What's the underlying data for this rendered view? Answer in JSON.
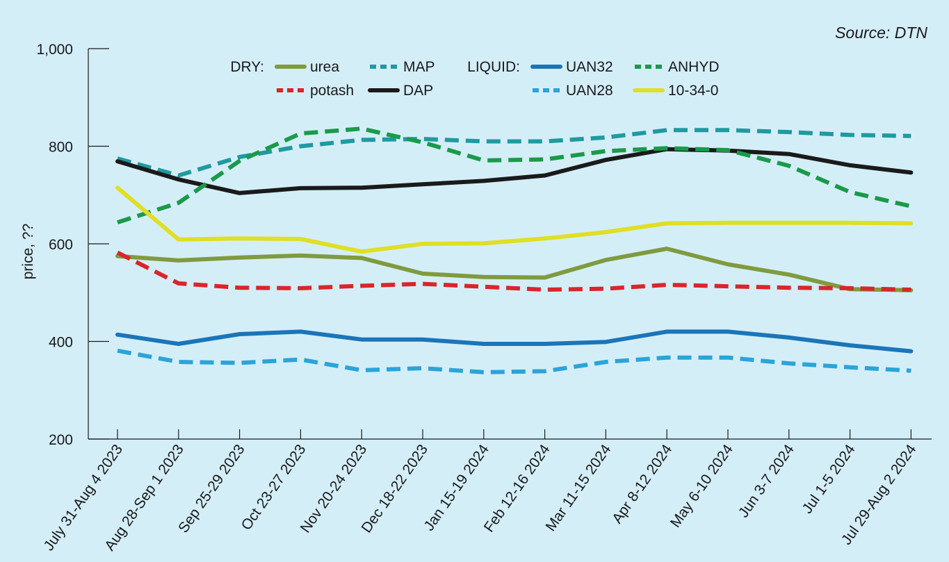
{
  "chart_data": {
    "type": "line",
    "source": "Source: DTN",
    "ylabel": "price, ??",
    "ylim": [
      200,
      1000
    ],
    "yticks": [
      200,
      400,
      600,
      800,
      1000
    ],
    "ytick_labels": [
      "200",
      "400",
      "600",
      "800",
      "1,000"
    ],
    "categories": [
      "July 31-Aug 4 2023",
      "Aug 28-Sep 1 2023",
      "Sep 25-29 2023",
      "Oct 23-27 2023",
      "Nov 20-24 2023",
      "Dec 18-22 2023",
      "Jan 15-19 2024",
      "Feb 12-16 2024",
      "Mar 11-15 2024",
      "Apr 8-12 2024",
      "May 6-10 2024",
      "Jun 3-7 2024",
      "Jul 1-5 2024",
      "Jul 29-Aug 2 2024"
    ],
    "legend_groups": [
      "DRY:",
      "LIQUID:"
    ],
    "series": [
      {
        "name": "urea",
        "group": "DRY:",
        "color": "#7f9b3e",
        "dashed": false,
        "values": [
          575,
          566,
          572,
          576,
          571,
          539,
          532,
          531,
          567,
          590,
          558,
          537,
          507,
          505
        ]
      },
      {
        "name": "potash",
        "group": "DRY:",
        "color": "#d9262a",
        "dashed": true,
        "values": [
          582,
          519,
          510,
          509,
          514,
          518,
          512,
          506,
          508,
          516,
          513,
          510,
          509,
          506
        ]
      },
      {
        "name": "MAP",
        "group": "DRY:",
        "color": "#1f9aa0",
        "dashed": true,
        "values": [
          775,
          740,
          778,
          800,
          813,
          815,
          810,
          810,
          818,
          833,
          833,
          829,
          823,
          821
        ]
      },
      {
        "name": "DAP",
        "group": "DRY:",
        "color": "#1a1a1a",
        "dashed": false,
        "values": [
          769,
          732,
          704,
          714,
          715,
          722,
          729,
          740,
          772,
          794,
          791,
          784,
          761,
          746
        ]
      },
      {
        "name": "UAN32",
        "group": "LIQUID:",
        "color": "#1b75b8",
        "dashed": false,
        "values": [
          414,
          395,
          415,
          420,
          404,
          404,
          395,
          395,
          399,
          420,
          420,
          408,
          392,
          380
        ]
      },
      {
        "name": "UAN28",
        "group": "LIQUID:",
        "color": "#2ba4d8",
        "dashed": true,
        "values": [
          381,
          358,
          356,
          363,
          341,
          345,
          337,
          339,
          358,
          367,
          367,
          355,
          347,
          340
        ]
      },
      {
        "name": "ANHYD",
        "group": "LIQUID:",
        "color": "#1a9a4a",
        "dashed": true,
        "values": [
          644,
          684,
          770,
          826,
          836,
          808,
          771,
          773,
          790,
          796,
          792,
          760,
          706,
          677
        ]
      },
      {
        "name": "10-34-0",
        "group": "LIQUID:",
        "color": "#dfdf24",
        "dashed": false,
        "values": [
          715,
          609,
          611,
          610,
          584,
          600,
          601,
          611,
          624,
          642,
          643,
          643,
          643,
          642
        ]
      }
    ]
  }
}
